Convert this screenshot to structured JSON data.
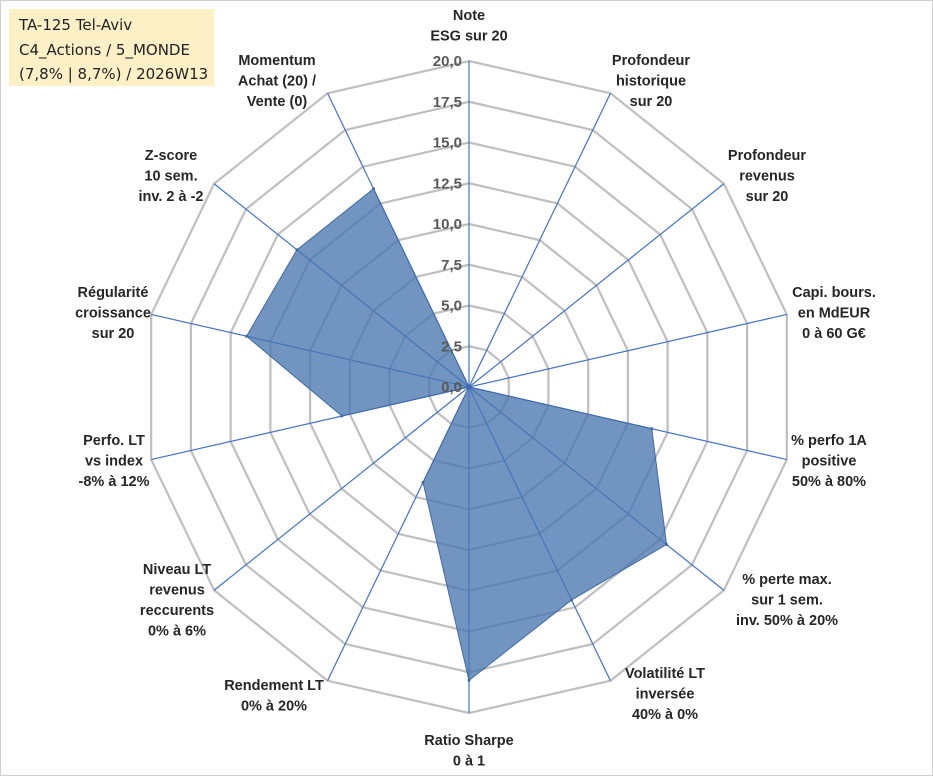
{
  "title_box": {
    "line1": "TA-125 Tel-Aviv",
    "line2": "C4_Actions / 5_MONDE",
    "line3": "(7,8% | 8,7%) / 2026W13"
  },
  "chart_data": {
    "type": "radar",
    "title": "TA-125 Tel-Aviv",
    "subtitle": "C4_Actions / 5_MONDE (7,8% | 8,7%) / 2026W13",
    "rlim": [
      0,
      20
    ],
    "ticks": [
      "0,0",
      "2,5",
      "5,0",
      "7,5",
      "10,0",
      "12,5",
      "15,0",
      "17,5",
      "20,0"
    ],
    "categories": [
      [
        "Note",
        "ESG sur 20"
      ],
      [
        "Profondeur",
        "historique",
        "sur 20"
      ],
      [
        "Profondeur",
        "revenus",
        "sur 20"
      ],
      [
        "Capi. bours.",
        "en MdEUR",
        "0 à 60 G€"
      ],
      [
        "% perfo 1A",
        "positive",
        "50% à 80%"
      ],
      [
        "% perte max.",
        "sur 1 sem.",
        "inv. 50% à 20%"
      ],
      [
        "Volatilité LT",
        "inversée",
        "40% à 0%"
      ],
      [
        "Ratio Sharpe",
        "0 à 1"
      ],
      [
        "Rendement LT",
        "0% à 20%"
      ],
      [
        "Niveau LT",
        "revenus",
        "reccurents",
        "0% à 6%"
      ],
      [
        "Perfo. LT",
        "vs index",
        "-8% à 12%"
      ],
      [
        "Régularité",
        "croissance",
        "sur 20"
      ],
      [
        "Z-score",
        "10 sem.",
        "inv. 2 à -2"
      ],
      [
        "Momentum",
        "Achat (20) /",
        "Vente (0)"
      ]
    ],
    "series": [
      {
        "name": "TA-125 Tel-Aviv",
        "values": [
          0,
          0,
          0,
          0,
          11.5,
          15.5,
          14.5,
          18.0,
          6.5,
          0,
          8.0,
          14.0,
          13.5,
          13.5
        ],
        "color": "#4a76b0"
      }
    ],
    "colors": {
      "grid": "#bfbfbf",
      "spoke": "#4472c4",
      "fill": "#4a76b0",
      "title_bg": "#fdefc6"
    }
  }
}
